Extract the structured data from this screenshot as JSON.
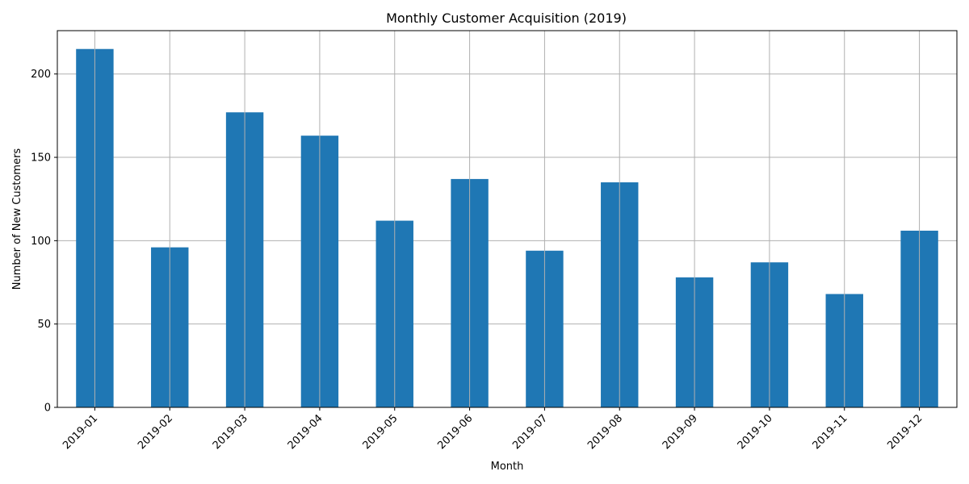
{
  "chart_data": {
    "type": "bar",
    "title": "Monthly Customer Acquisition (2019)",
    "xlabel": "Month",
    "ylabel": "Number of New Customers",
    "categories": [
      "2019-01",
      "2019-02",
      "2019-03",
      "2019-04",
      "2019-05",
      "2019-06",
      "2019-07",
      "2019-08",
      "2019-09",
      "2019-10",
      "2019-11",
      "2019-12"
    ],
    "values": [
      215,
      96,
      177,
      163,
      112,
      137,
      94,
      135,
      78,
      87,
      68,
      106
    ],
    "ylim": [
      0,
      226
    ],
    "yticks": [
      0,
      50,
      100,
      150,
      200
    ],
    "grid": true,
    "bar_color": "#1f77b4",
    "x_tick_rotation_deg": 45
  }
}
